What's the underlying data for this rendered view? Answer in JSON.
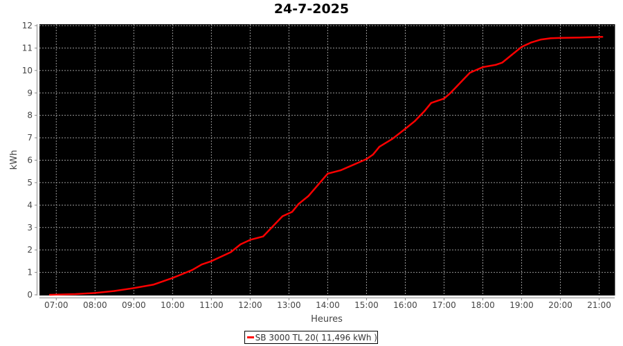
{
  "chart_data": {
    "type": "line",
    "title": "24-7-2025",
    "xlabel": "Heures",
    "ylabel": "kWh",
    "xlim": [
      "06:34",
      "21:24"
    ],
    "ylim": [
      0,
      12
    ],
    "x_ticks": [
      "07:00",
      "08:00",
      "09:00",
      "10:00",
      "11:00",
      "12:00",
      "13:00",
      "14:00",
      "15:00",
      "16:00",
      "17:00",
      "18:00",
      "19:00",
      "20:00",
      "21:00"
    ],
    "y_ticks": [
      0,
      1,
      2,
      3,
      4,
      5,
      6,
      7,
      8,
      9,
      10,
      11,
      12
    ],
    "grid": true,
    "background": "#000000",
    "legend_placement": "bottom",
    "series": [
      {
        "name": "SB 3000 TL 20( 11,496 kWh )",
        "color": "#ff0000",
        "points": [
          [
            "06:50",
            0
          ],
          [
            "07:30",
            0.03
          ],
          [
            "08:00",
            0.08
          ],
          [
            "08:30",
            0.17
          ],
          [
            "09:00",
            0.3
          ],
          [
            "09:30",
            0.45
          ],
          [
            "10:00",
            0.75
          ],
          [
            "10:30",
            1.1
          ],
          [
            "10:45",
            1.35
          ],
          [
            "11:00",
            1.5
          ],
          [
            "11:30",
            1.9
          ],
          [
            "11:45",
            2.25
          ],
          [
            "12:00",
            2.45
          ],
          [
            "12:20",
            2.6
          ],
          [
            "12:40",
            3.2
          ],
          [
            "12:50",
            3.5
          ],
          [
            "13:05",
            3.7
          ],
          [
            "13:15",
            4.05
          ],
          [
            "13:30",
            4.4
          ],
          [
            "13:45",
            4.9
          ],
          [
            "14:00",
            5.4
          ],
          [
            "14:20",
            5.55
          ],
          [
            "14:40",
            5.8
          ],
          [
            "15:00",
            6.05
          ],
          [
            "15:10",
            6.25
          ],
          [
            "15:20",
            6.6
          ],
          [
            "15:40",
            6.95
          ],
          [
            "16:00",
            7.4
          ],
          [
            "16:15",
            7.75
          ],
          [
            "16:30",
            8.2
          ],
          [
            "16:40",
            8.55
          ],
          [
            "16:50",
            8.65
          ],
          [
            "17:00",
            8.75
          ],
          [
            "17:10",
            9.0
          ],
          [
            "17:20",
            9.3
          ],
          [
            "17:30",
            9.6
          ],
          [
            "17:40",
            9.9
          ],
          [
            "18:00",
            10.15
          ],
          [
            "18:20",
            10.25
          ],
          [
            "18:30",
            10.35
          ],
          [
            "18:45",
            10.7
          ],
          [
            "19:00",
            11.05
          ],
          [
            "19:15",
            11.25
          ],
          [
            "19:30",
            11.38
          ],
          [
            "19:45",
            11.44
          ],
          [
            "20:00",
            11.45
          ],
          [
            "20:30",
            11.47
          ],
          [
            "21:05",
            11.496
          ]
        ]
      }
    ]
  }
}
